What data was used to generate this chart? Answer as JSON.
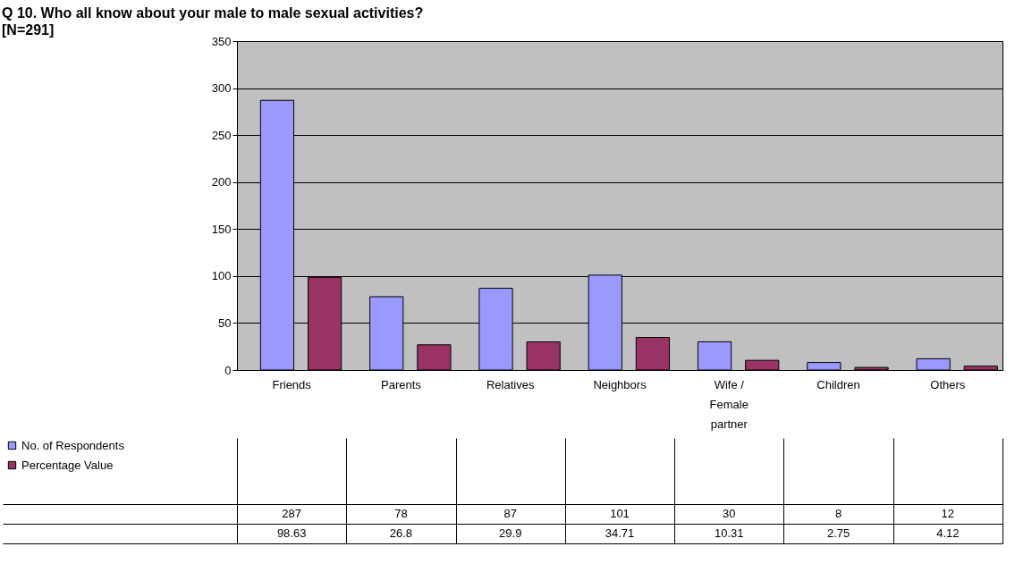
{
  "chart_data": {
    "type": "bar",
    "title": "Q 10. Who all know about your male to male sexual activities?",
    "subtitle": "[N=291]",
    "categories": [
      "Friends",
      "Parents",
      "Relatives",
      "Neighbors",
      "Wife / Female partner",
      "Children",
      "Others"
    ],
    "series": [
      {
        "name": "No. of Respondents",
        "color": "#9999ff",
        "values": [
          287,
          78,
          87,
          101,
          30,
          8,
          12
        ]
      },
      {
        "name": "Percentage Value",
        "color": "#993366",
        "values": [
          98.63,
          26.8,
          29.9,
          34.71,
          10.31,
          2.75,
          4.12
        ]
      }
    ],
    "ylim": [
      0,
      350
    ],
    "yticks": [
      0,
      50,
      100,
      150,
      200,
      250,
      300,
      350
    ],
    "grid": "y",
    "legend": "bottom",
    "data_labels": true
  }
}
